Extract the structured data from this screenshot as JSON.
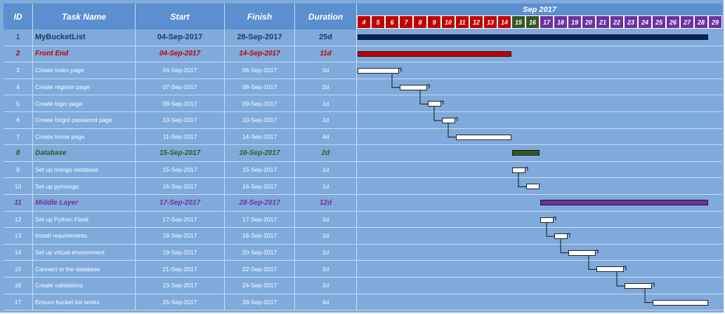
{
  "headers": {
    "id": "ID",
    "task": "Task Name",
    "start": "Start",
    "finish": "Finish",
    "duration": "Duration"
  },
  "timeline": {
    "month": "Sep 2017",
    "days": [
      {
        "n": "4",
        "c": "#c00000"
      },
      {
        "n": "5",
        "c": "#c00000"
      },
      {
        "n": "6",
        "c": "#c00000"
      },
      {
        "n": "7",
        "c": "#c00000"
      },
      {
        "n": "8",
        "c": "#c00000"
      },
      {
        "n": "9",
        "c": "#c00000"
      },
      {
        "n": "10",
        "c": "#c00000"
      },
      {
        "n": "11",
        "c": "#c00000"
      },
      {
        "n": "12",
        "c": "#c00000"
      },
      {
        "n": "13",
        "c": "#c00000"
      },
      {
        "n": "14",
        "c": "#c00000"
      },
      {
        "n": "15",
        "c": "#375623"
      },
      {
        "n": "16",
        "c": "#375623"
      },
      {
        "n": "17",
        "c": "#7030a0"
      },
      {
        "n": "18",
        "c": "#7030a0"
      },
      {
        "n": "19",
        "c": "#7030a0"
      },
      {
        "n": "20",
        "c": "#7030a0"
      },
      {
        "n": "21",
        "c": "#7030a0"
      },
      {
        "n": "22",
        "c": "#7030a0"
      },
      {
        "n": "23",
        "c": "#7030a0"
      },
      {
        "n": "24",
        "c": "#7030a0"
      },
      {
        "n": "25",
        "c": "#7030a0"
      },
      {
        "n": "26",
        "c": "#7030a0"
      },
      {
        "n": "27",
        "c": "#7030a0"
      },
      {
        "n": "28",
        "c": "#7030a0"
      },
      {
        "n": "29",
        "c": "#7030a0"
      }
    ]
  },
  "rows": [
    {
      "id": "1",
      "name": "MyBucketList",
      "start": "04-Sep-2017",
      "finish": "28-Sep-2017",
      "duration": "25d",
      "kind": "summary",
      "color": "#1f3864",
      "bar_color": "#002060",
      "s": 4,
      "e": 28
    },
    {
      "id": "2",
      "name": "Front End",
      "start": "04-Sep-2017",
      "finish": "14-Sep-2017",
      "duration": "11d",
      "kind": "group",
      "color": "#c00000",
      "bar_color": "#c00000",
      "s": 4,
      "e": 14
    },
    {
      "id": "3",
      "name": "Create index page",
      "start": "04-Sep-2017",
      "finish": "06-Sep-2017",
      "duration": "3d",
      "kind": "task",
      "s": 4,
      "e": 6
    },
    {
      "id": "4",
      "name": "Create register page",
      "start": "07-Sep-2017",
      "finish": "08-Sep-2017",
      "duration": "2d",
      "kind": "task",
      "s": 7,
      "e": 8
    },
    {
      "id": "5",
      "name": "Create login page",
      "start": "09-Sep-2017",
      "finish": "09-Sep-2017",
      "duration": "1d",
      "kind": "task",
      "s": 9,
      "e": 9
    },
    {
      "id": "6",
      "name": "Create forgot password page",
      "start": "10-Sep-2017",
      "finish": "10-Sep-2017",
      "duration": "1d",
      "kind": "task",
      "s": 10,
      "e": 10
    },
    {
      "id": "7",
      "name": "Create home page",
      "start": "11-Sep-2017",
      "finish": "14-Sep-2017",
      "duration": "4d",
      "kind": "task",
      "s": 11,
      "e": 14
    },
    {
      "id": "8",
      "name": "Database",
      "start": "15-Sep-2017",
      "finish": "16-Sep-2017",
      "duration": "2d",
      "kind": "group",
      "color": "#375623",
      "bar_color": "#375623",
      "s": 15,
      "e": 16
    },
    {
      "id": "9",
      "name": "Set up mongo database",
      "start": "15-Sep-2017",
      "finish": "15-Sep-2017",
      "duration": "1d",
      "kind": "task",
      "s": 15,
      "e": 15
    },
    {
      "id": "10",
      "name": "Set up pymongo",
      "start": "16-Sep-2017",
      "finish": "16-Sep-2017",
      "duration": "1d",
      "kind": "task",
      "s": 16,
      "e": 16
    },
    {
      "id": "11",
      "name": "Middle Layer",
      "start": "17-Sep-2017",
      "finish": "28-Sep-2017",
      "duration": "12d",
      "kind": "group",
      "color": "#7030a0",
      "bar_color": "#7030a0",
      "s": 17,
      "e": 28
    },
    {
      "id": "12",
      "name": "Set up Python Flask",
      "start": "17-Sep-2017",
      "finish": "17-Sep-2017",
      "duration": "1d",
      "kind": "task",
      "s": 17,
      "e": 17
    },
    {
      "id": "13",
      "name": "Install requirements",
      "start": "18-Sep-2017",
      "finish": "18-Sep-2017",
      "duration": "1d",
      "kind": "task",
      "s": 18,
      "e": 18
    },
    {
      "id": "14",
      "name": "Set up virtual environment",
      "start": "19-Sep-2017",
      "finish": "20-Sep-2017",
      "duration": "2d",
      "kind": "task",
      "s": 19,
      "e": 20
    },
    {
      "id": "15",
      "name": "Connect to the database",
      "start": "21-Sep-2017",
      "finish": "22-Sep-2017",
      "duration": "2d",
      "kind": "task",
      "s": 21,
      "e": 22
    },
    {
      "id": "16",
      "name": "Create validations",
      "start": "23-Sep-2017",
      "finish": "24-Sep-2017",
      "duration": "2d",
      "kind": "task",
      "s": 23,
      "e": 24
    },
    {
      "id": "17",
      "name": "Ensure bucket list works",
      "start": "25-Sep-2017",
      "finish": "28-Sep-2017",
      "duration": "4d",
      "kind": "task",
      "s": 25,
      "e": 28
    }
  ],
  "links": [
    [
      3,
      4
    ],
    [
      4,
      5
    ],
    [
      5,
      6
    ],
    [
      6,
      7
    ],
    [
      9,
      10
    ],
    [
      12,
      13
    ],
    [
      13,
      14
    ],
    [
      14,
      15
    ],
    [
      15,
      16
    ],
    [
      16,
      17
    ]
  ]
}
